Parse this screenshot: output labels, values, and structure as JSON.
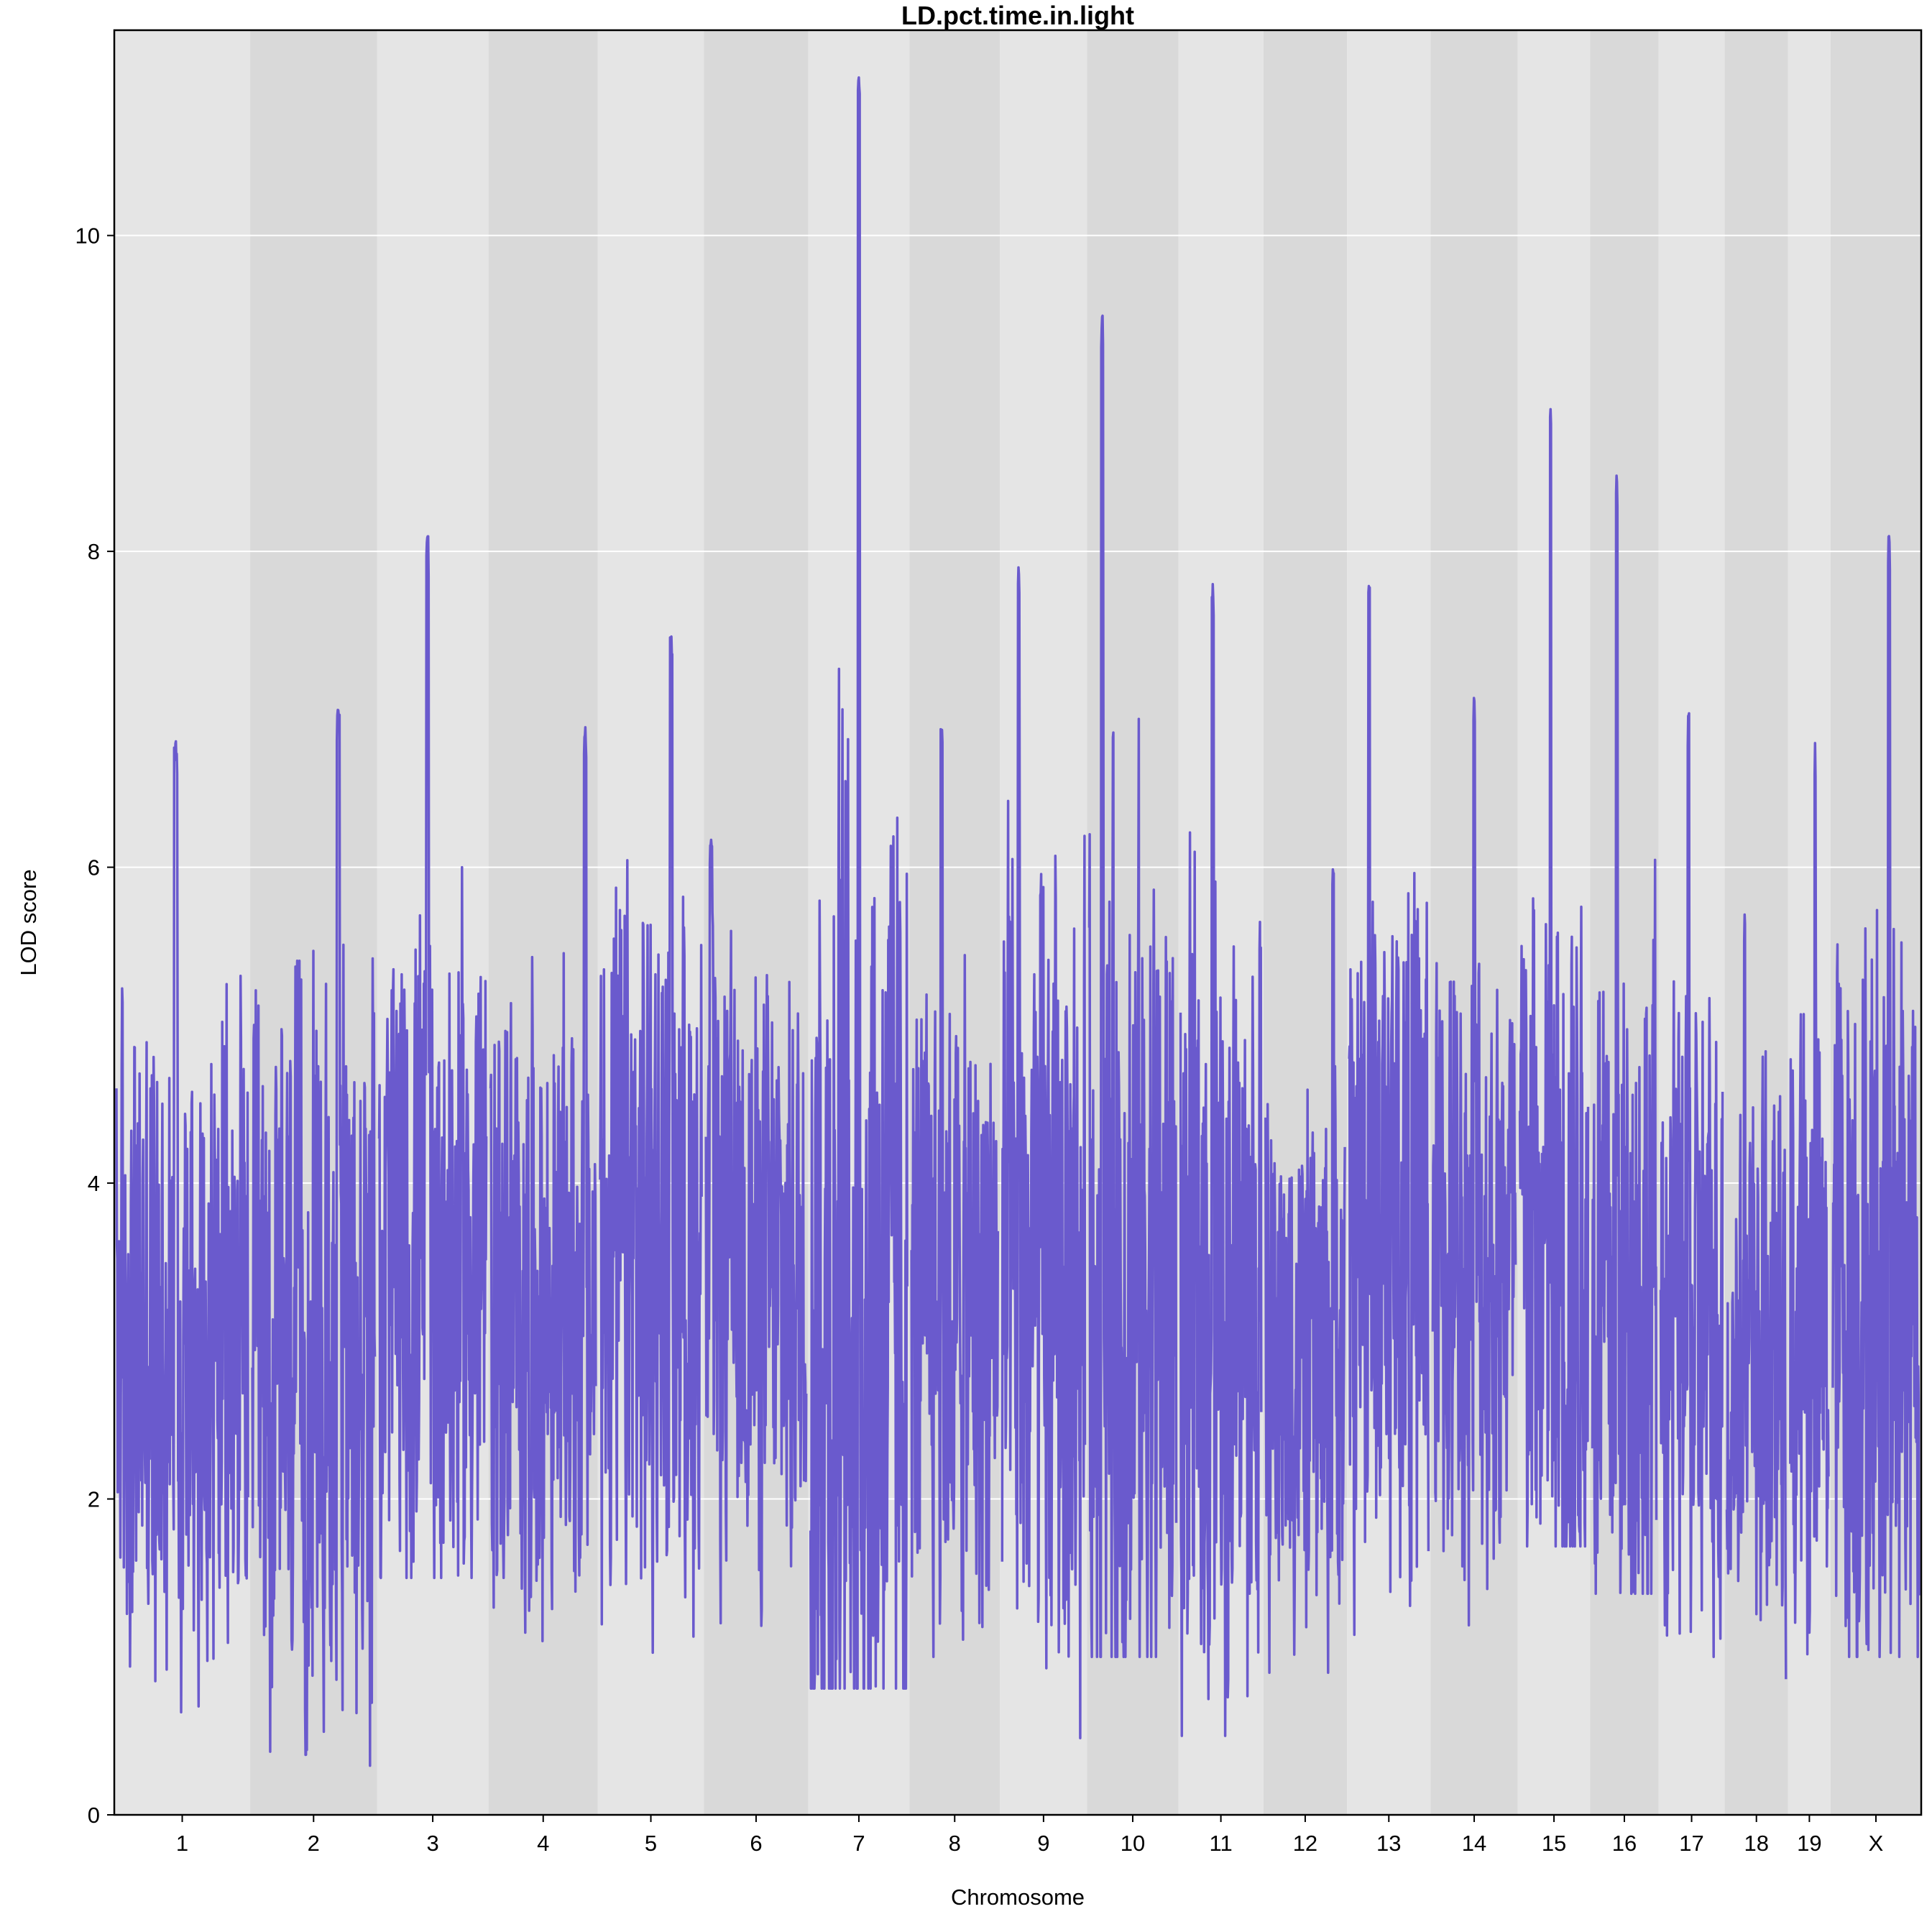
{
  "chart_data": {
    "type": "line",
    "title": "LD.pct.time.in.light",
    "xlabel": "Chromosome",
    "ylabel": "LOD score",
    "ylim": [
      0,
      11.3
    ],
    "yticks": [
      0,
      2,
      4,
      6,
      8,
      10
    ],
    "grid": "horizontal",
    "line_color": "#6a5acd",
    "band_colors": [
      "#e5e5e5",
      "#d9d9d9"
    ],
    "chromosomes": [
      {
        "name": "1",
        "length": 195,
        "min": 0.6,
        "max": 6.8,
        "peak_pos": 0.45,
        "base": 3.0
      },
      {
        "name": "2",
        "length": 182,
        "min": 0.3,
        "max": 7.0,
        "peak_pos": 0.7,
        "base": 2.8
      },
      {
        "name": "3",
        "length": 160,
        "min": 1.5,
        "max": 8.1,
        "peak_pos": 0.45,
        "base": 3.5
      },
      {
        "name": "4",
        "length": 157,
        "min": 1.1,
        "max": 6.9,
        "peak_pos": 0.9,
        "base": 3.2
      },
      {
        "name": "5",
        "length": 152,
        "min": 0.9,
        "max": 7.5,
        "peak_pos": 0.7,
        "base": 3.6
      },
      {
        "name": "6",
        "length": 150,
        "min": 0.7,
        "max": 6.2,
        "peak_pos": 0.05,
        "base": 3.4
      },
      {
        "name": "7",
        "length": 145,
        "min": 0.8,
        "max": 11.0,
        "peak_pos": 0.5,
        "base": 3.2
      },
      {
        "name": "8",
        "length": 130,
        "min": 1.0,
        "max": 6.9,
        "peak_pos": 0.35,
        "base": 3.2
      },
      {
        "name": "9",
        "length": 125,
        "min": 0.4,
        "max": 7.9,
        "peak_pos": 0.2,
        "base": 3.3
      },
      {
        "name": "10",
        "length": 131,
        "min": 1.0,
        "max": 9.5,
        "peak_pos": 0.15,
        "base": 3.4
      },
      {
        "name": "11",
        "length": 122,
        "min": 0.5,
        "max": 7.8,
        "peak_pos": 0.4,
        "base": 3.2
      },
      {
        "name": "12",
        "length": 120,
        "min": 0.9,
        "max": 6.0,
        "peak_pos": 0.85,
        "base": 2.9
      },
      {
        "name": "13",
        "length": 120,
        "min": 0.9,
        "max": 7.8,
        "peak_pos": 0.25,
        "base": 3.8
      },
      {
        "name": "14",
        "length": 125,
        "min": 1.2,
        "max": 7.1,
        "peak_pos": 0.5,
        "base": 3.5
      },
      {
        "name": "15",
        "length": 104,
        "min": 1.7,
        "max": 8.9,
        "peak_pos": 0.45,
        "base": 3.6
      },
      {
        "name": "16",
        "length": 98,
        "min": 1.4,
        "max": 8.5,
        "peak_pos": 0.38,
        "base": 3.3
      },
      {
        "name": "17",
        "length": 95,
        "min": 1.0,
        "max": 7.0,
        "peak_pos": 0.45,
        "base": 3.1
      },
      {
        "name": "18",
        "length": 91,
        "min": 0.6,
        "max": 5.7,
        "peak_pos": 0.3,
        "base": 2.8
      },
      {
        "name": "19",
        "length": 61,
        "min": 0.8,
        "max": 6.8,
        "peak_pos": 0.65,
        "base": 3.0
      },
      {
        "name": "X",
        "length": 130,
        "min": 1.0,
        "max": 8.1,
        "peak_pos": 0.65,
        "base": 3.3
      }
    ]
  }
}
